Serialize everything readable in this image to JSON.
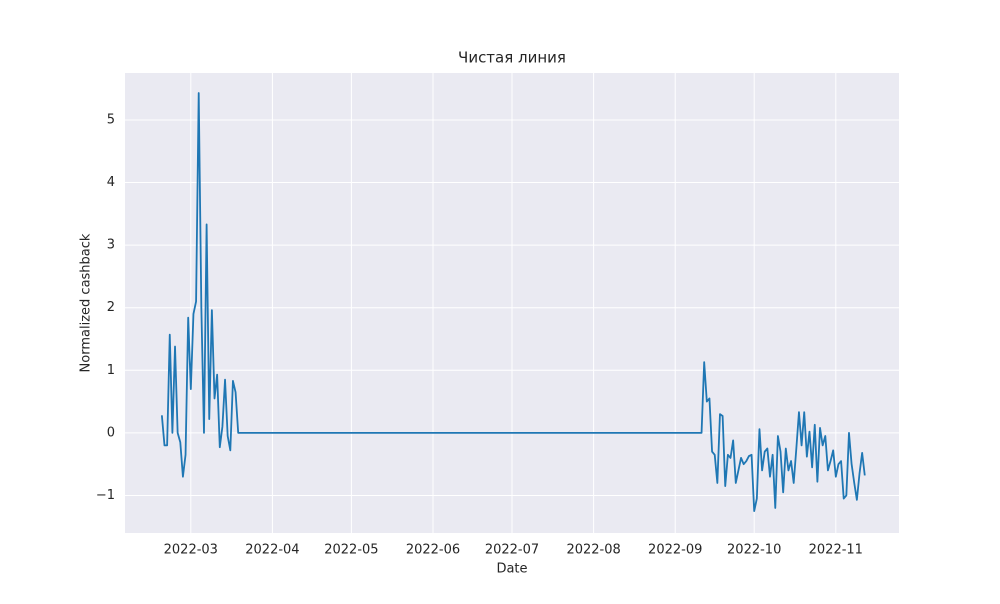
{
  "chart_data": {
    "type": "line",
    "title": "Чистая линия",
    "xlabel": "Date",
    "ylabel": "Normalized cashback",
    "color": "#1f77b4",
    "grid": true,
    "x": [
      "2022-02-18",
      "2022-02-19",
      "2022-02-20",
      "2022-02-21",
      "2022-02-22",
      "2022-02-23",
      "2022-02-24",
      "2022-02-25",
      "2022-02-26",
      "2022-02-27",
      "2022-02-28",
      "2022-03-01",
      "2022-03-02",
      "2022-03-03",
      "2022-03-04",
      "2022-03-05",
      "2022-03-06",
      "2022-03-07",
      "2022-03-08",
      "2022-03-09",
      "2022-03-10",
      "2022-03-11",
      "2022-03-12",
      "2022-03-13",
      "2022-03-14",
      "2022-03-15",
      "2022-03-16",
      "2022-03-17",
      "2022-03-18",
      "2022-03-19",
      "2022-03-20",
      "2022-09-11",
      "2022-09-12",
      "2022-09-13",
      "2022-09-14",
      "2022-09-15",
      "2022-09-16",
      "2022-09-17",
      "2022-09-18",
      "2022-09-19",
      "2022-09-20",
      "2022-09-21",
      "2022-09-22",
      "2022-09-23",
      "2022-09-24",
      "2022-09-25",
      "2022-09-26",
      "2022-09-27",
      "2022-09-28",
      "2022-09-29",
      "2022-09-30",
      "2022-10-01",
      "2022-10-02",
      "2022-10-03",
      "2022-10-04",
      "2022-10-05",
      "2022-10-06",
      "2022-10-07",
      "2022-10-08",
      "2022-10-09",
      "2022-10-10",
      "2022-10-11",
      "2022-10-12",
      "2022-10-13",
      "2022-10-14",
      "2022-10-15",
      "2022-10-16",
      "2022-10-17",
      "2022-10-18",
      "2022-10-19",
      "2022-10-20",
      "2022-10-21",
      "2022-10-22",
      "2022-10-23",
      "2022-10-24",
      "2022-10-25",
      "2022-10-26",
      "2022-10-27",
      "2022-10-28",
      "2022-10-29",
      "2022-10-30",
      "2022-10-31",
      "2022-11-01",
      "2022-11-02",
      "2022-11-03",
      "2022-11-04",
      "2022-11-05",
      "2022-11-06",
      "2022-11-07",
      "2022-11-08",
      "2022-11-09",
      "2022-11-10",
      "2022-11-11",
      "2022-11-12"
    ],
    "values": [
      0.28,
      -0.2,
      -0.2,
      1.57,
      0,
      1.38,
      0,
      -0.15,
      -0.7,
      -0.35,
      1.84,
      0.7,
      1.9,
      2.1,
      5.43,
      2.0,
      0,
      3.33,
      0.22,
      1.96,
      0.55,
      0.93,
      -0.23,
      0.1,
      0.85,
      -0.05,
      -0.28,
      0.83,
      0.65,
      0,
      0,
      0,
      1.13,
      0.5,
      0.55,
      -0.3,
      -0.35,
      -0.8,
      0.3,
      0.27,
      -0.85,
      -0.35,
      -0.4,
      -0.12,
      -0.8,
      -0.6,
      -0.4,
      -0.5,
      -0.45,
      -0.37,
      -0.35,
      -1.25,
      -1.05,
      0.06,
      -0.6,
      -0.3,
      -0.25,
      -0.7,
      -0.35,
      -1.2,
      -0.05,
      -0.3,
      -0.95,
      -0.25,
      -0.6,
      -0.45,
      -0.8,
      -0.25,
      0.33,
      -0.2,
      0.33,
      -0.38,
      0.02,
      -0.55,
      0.13,
      -0.78,
      0.08,
      -0.2,
      -0.05,
      -0.6,
      -0.45,
      -0.28,
      -0.7,
      -0.5,
      -0.45,
      -1.05,
      -1.0,
      0,
      -0.5,
      -0.8,
      -1.07,
      -0.65,
      -0.32,
      -0.68
    ],
    "xlim": [
      "2022-02-04",
      "2022-11-25"
    ],
    "xticks": [
      {
        "value": "2022-03-01",
        "label": "2022-03"
      },
      {
        "value": "2022-04-01",
        "label": "2022-04"
      },
      {
        "value": "2022-05-01",
        "label": "2022-05"
      },
      {
        "value": "2022-06-01",
        "label": "2022-06"
      },
      {
        "value": "2022-07-01",
        "label": "2022-07"
      },
      {
        "value": "2022-08-01",
        "label": "2022-08"
      },
      {
        "value": "2022-09-01",
        "label": "2022-09"
      },
      {
        "value": "2022-10-01",
        "label": "2022-10"
      },
      {
        "value": "2022-11-01",
        "label": "2022-11"
      }
    ],
    "ylim": [
      -1.6,
      5.75
    ],
    "yticks": [
      {
        "value": -1,
        "label": "−1"
      },
      0,
      1,
      2,
      3,
      4,
      5
    ]
  }
}
